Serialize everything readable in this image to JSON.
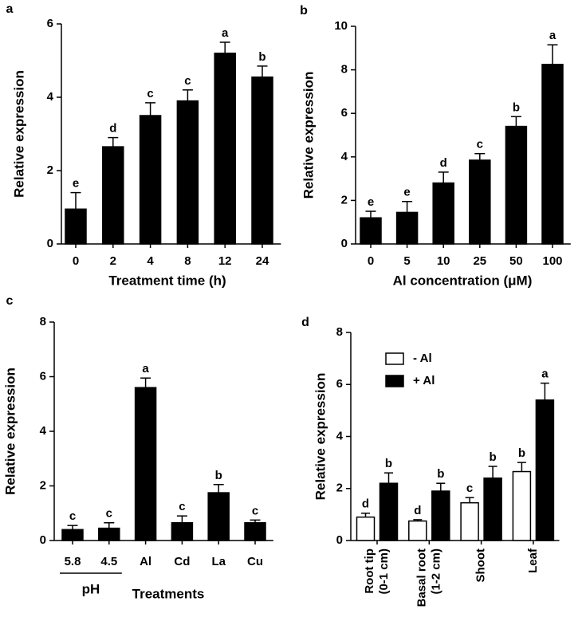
{
  "chart_data": [
    {
      "type": "bar",
      "panel": "a",
      "ylabel": "Relative expression",
      "xlabel": "Treatment time (h)",
      "categories": [
        "0",
        "2",
        "4",
        "8",
        "12",
        "24"
      ],
      "values": [
        0.95,
        2.65,
        3.5,
        3.9,
        5.2,
        4.55
      ],
      "errors": [
        0.45,
        0.25,
        0.35,
        0.3,
        0.3,
        0.3
      ],
      "letters": [
        "e",
        "d",
        "c",
        "c",
        "a",
        "b"
      ],
      "color": "#000000",
      "ylim": [
        0,
        6
      ],
      "yticks": [
        0,
        2,
        4,
        6
      ]
    },
    {
      "type": "bar",
      "panel": "b",
      "ylabel": "Relative expression",
      "xlabel": "Al concentration (μM)",
      "categories": [
        "0",
        "5",
        "10",
        "25",
        "50",
        "100"
      ],
      "values": [
        1.2,
        1.45,
        2.8,
        3.85,
        5.4,
        8.25
      ],
      "errors": [
        0.3,
        0.5,
        0.5,
        0.3,
        0.45,
        0.9
      ],
      "letters": [
        "e",
        "e",
        "d",
        "c",
        "b",
        "a"
      ],
      "color": "#000000",
      "ylim": [
        0,
        10
      ],
      "yticks": [
        0,
        2,
        4,
        6,
        8,
        10
      ]
    },
    {
      "type": "bar",
      "panel": "c",
      "ylabel": "Relative expression",
      "xlabel": "Treatments",
      "group_label": "pH",
      "categories": [
        "5.8",
        "4.5",
        "Al",
        "Cd",
        "La",
        "Cu"
      ],
      "values": [
        0.4,
        0.45,
        5.6,
        0.65,
        1.75,
        0.65
      ],
      "errors": [
        0.15,
        0.2,
        0.35,
        0.25,
        0.3,
        0.1
      ],
      "letters": [
        "c",
        "c",
        "a",
        "c",
        "b",
        "c"
      ],
      "color": "#000000",
      "ylim": [
        0,
        8
      ],
      "yticks": [
        0,
        2,
        4,
        6,
        8
      ]
    },
    {
      "type": "grouped_bar",
      "panel": "d",
      "ylabel": "Relative expression",
      "categories": [
        [
          "Root tip",
          "(0-1 cm)"
        ],
        [
          "Basal root",
          "(1-2 cm)"
        ],
        [
          "Shoot"
        ],
        [
          "Leaf"
        ]
      ],
      "series": [
        {
          "name": "- Al",
          "color": "#ffffff",
          "values": [
            0.9,
            0.75,
            1.45,
            2.65
          ],
          "errors": [
            0.15,
            0.05,
            0.2,
            0.35
          ],
          "letters": [
            "d",
            "d",
            "c",
            "b"
          ]
        },
        {
          "name": "+ Al",
          "color": "#000000",
          "values": [
            2.2,
            1.9,
            2.4,
            5.4
          ],
          "errors": [
            0.4,
            0.3,
            0.45,
            0.65
          ],
          "letters": [
            "b",
            "b",
            "b",
            "a"
          ]
        }
      ],
      "ylim": [
        0,
        8
      ],
      "yticks": [
        0,
        2,
        4,
        6,
        8
      ]
    }
  ]
}
